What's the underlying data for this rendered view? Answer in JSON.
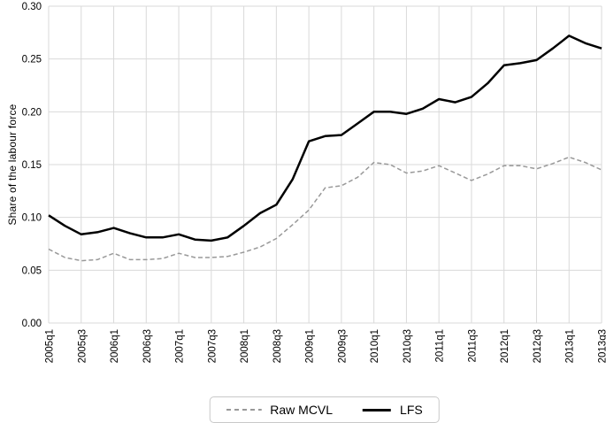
{
  "chart_data": {
    "type": "line",
    "title": "",
    "xlabel": "",
    "ylabel": "Share of the labour force",
    "ylim": [
      0.0,
      0.3
    ],
    "yticks": [
      "0.00",
      "0.05",
      "0.10",
      "0.15",
      "0.20",
      "0.25",
      "0.30"
    ],
    "xtick_step": 2,
    "grid": true,
    "legend_position": "bottom-center",
    "x": [
      "2005q1",
      "2005q2",
      "2005q3",
      "2005q4",
      "2006q1",
      "2006q2",
      "2006q3",
      "2006q4",
      "2007q1",
      "2007q2",
      "2007q3",
      "2007q4",
      "2008q1",
      "2008q2",
      "2008q3",
      "2008q4",
      "2009q1",
      "2009q2",
      "2009q3",
      "2009q4",
      "2010q1",
      "2010q2",
      "2010q3",
      "2010q4",
      "2011q1",
      "2011q2",
      "2011q3",
      "2011q4",
      "2012q1",
      "2012q2",
      "2012q3",
      "2012q4",
      "2013q1",
      "2013q2",
      "2013q3"
    ],
    "xtick_labels": [
      "2005q1",
      "2005q3",
      "2006q1",
      "2006q3",
      "2007q1",
      "2007q3",
      "2008q1",
      "2008q3",
      "2009q1",
      "2009q3",
      "2010q1",
      "2010q3",
      "2011q1",
      "2011q3",
      "2012q1",
      "2012q3",
      "2013q1",
      "2013q3"
    ],
    "series": [
      {
        "name": "Raw MCVL",
        "style": "dashed",
        "color": "#999999",
        "values": [
          0.07,
          0.062,
          0.059,
          0.06,
          0.066,
          0.06,
          0.06,
          0.061,
          0.066,
          0.062,
          0.062,
          0.063,
          0.067,
          0.072,
          0.08,
          0.093,
          0.107,
          0.128,
          0.13,
          0.138,
          0.152,
          0.15,
          0.142,
          0.144,
          0.149,
          0.142,
          0.135,
          0.141,
          0.149,
          0.149,
          0.146,
          0.151,
          0.157,
          0.152,
          0.145
        ]
      },
      {
        "name": "LFS",
        "style": "solid",
        "color": "#000000",
        "values": [
          0.102,
          0.092,
          0.084,
          0.086,
          0.09,
          0.085,
          0.081,
          0.081,
          0.084,
          0.079,
          0.078,
          0.081,
          0.092,
          0.104,
          0.112,
          0.136,
          0.172,
          0.177,
          0.178,
          0.189,
          0.2,
          0.2,
          0.198,
          0.203,
          0.212,
          0.209,
          0.214,
          0.227,
          0.244,
          0.246,
          0.249,
          0.26,
          0.272,
          0.265,
          0.26
        ]
      }
    ],
    "colors": {
      "grid": "#d9d9d9",
      "text": "#000000",
      "legend_border": "#c9c9c9",
      "background": "#ffffff"
    }
  }
}
